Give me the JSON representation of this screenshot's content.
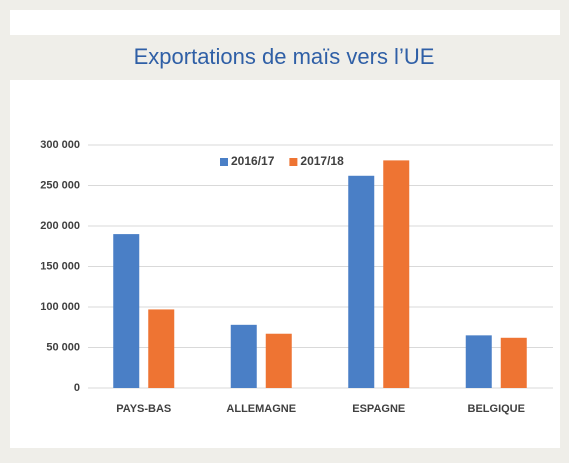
{
  "chart_data": {
    "type": "bar",
    "title": "Exportations de maïs vers l’UE",
    "categories": [
      "PAYS-BAS",
      "ALLEMAGNE",
      "ESPAGNE",
      "BELGIQUE"
    ],
    "series": [
      {
        "name": "2016/17",
        "color": "#4a7fc6",
        "values": [
          190000,
          78000,
          262000,
          65000
        ]
      },
      {
        "name": "2017/18",
        "color": "#ee7433",
        "values": [
          97000,
          67000,
          281000,
          62000
        ]
      }
    ],
    "ylim": [
      0,
      300000
    ],
    "yticks": [
      0,
      {
        "value": 50000,
        "label": "50 000"
      },
      {
        "value": 100000,
        "label": "100 000"
      },
      {
        "value": 150000,
        "label": "150 000"
      },
      {
        "value": 200000,
        "label": "200 000"
      },
      {
        "value": 250000,
        "label": "250 000"
      },
      {
        "value": 300000,
        "label": "300 000"
      }
    ],
    "grid": true,
    "legend": "top"
  }
}
